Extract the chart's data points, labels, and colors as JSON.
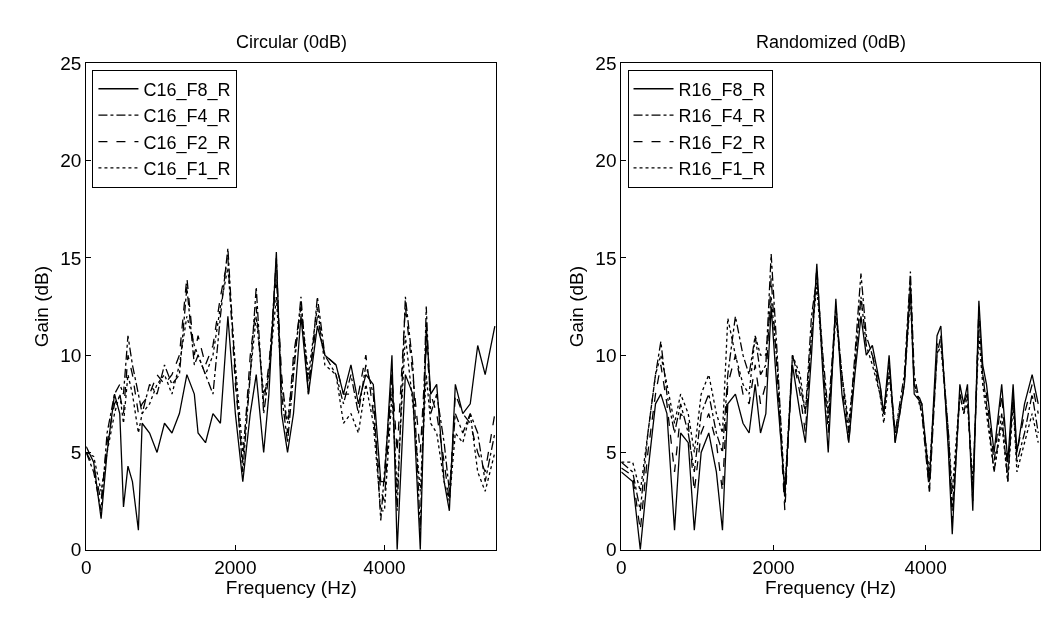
{
  "chart_data": [
    {
      "type": "line",
      "title": "Circular (0dB)",
      "xlabel": "Frequency (Hz)",
      "ylabel": "Gain (dB)",
      "xlim": [
        0,
        5500
      ],
      "xticks": [
        0,
        2000,
        4000
      ],
      "ylim": [
        0,
        25
      ],
      "yticks": [
        0,
        5,
        10,
        15,
        20,
        25
      ],
      "grid": false,
      "legend": "top left",
      "marker": "none",
      "x": [
        0,
        100,
        200,
        280,
        380,
        450,
        500,
        560,
        620,
        700,
        750,
        850,
        950,
        1050,
        1150,
        1250,
        1350,
        1450,
        1500,
        1600,
        1700,
        1800,
        1900,
        2000,
        2100,
        2200,
        2280,
        2380,
        2450,
        2550,
        2620,
        2700,
        2780,
        2880,
        2980,
        3100,
        3200,
        3350,
        3450,
        3550,
        3650,
        3750,
        3850,
        3950,
        4000,
        4100,
        4170,
        4280,
        4380,
        4480,
        4560,
        4620,
        4700,
        4800,
        4870,
        4950,
        5050,
        5150,
        5250,
        5350,
        5480
      ],
      "series": [
        {
          "name": "C16_F8_R",
          "color": "#000000",
          "line_style": "solid",
          "values": [
            5.3,
            4.5,
            1.6,
            5,
            8,
            7,
            2.2,
            4.3,
            3.5,
            1,
            6.5,
            6,
            5,
            6.5,
            6,
            7,
            9,
            8,
            6,
            5.5,
            7,
            6.5,
            12,
            7,
            3.5,
            7,
            9,
            5,
            8,
            15.3,
            7,
            5,
            7,
            12,
            8,
            11.5,
            10,
            9.5,
            8,
            9.5,
            7.5,
            9,
            8.5,
            3.5,
            3.5,
            10,
            0,
            9,
            8,
            0,
            11.5,
            8,
            8.5,
            3.5,
            2,
            8.5,
            7,
            7.5,
            10.5,
            9,
            11.5
          ]
        },
        {
          "name": "C16_F4_R",
          "color": "#000000",
          "line_style": "dashdot",
          "values": [
            5,
            4,
            2,
            6,
            8,
            8.5,
            8,
            11,
            9.5,
            8,
            7,
            8.5,
            8,
            9.5,
            8.5,
            9,
            13.5,
            9.5,
            10,
            9,
            8,
            12,
            15.5,
            9,
            4,
            9,
            13.5,
            7,
            9,
            15,
            8,
            5.5,
            9,
            13,
            8,
            13,
            10,
            9,
            7.5,
            9,
            7,
            9.5,
            8,
            1.5,
            4,
            9,
            2,
            13,
            9.5,
            1,
            12.5,
            7,
            8,
            5.5,
            3,
            7,
            6,
            7,
            6,
            3.5,
            6
          ]
        },
        {
          "name": "C16_F2_R",
          "color": "#000000",
          "line_style": "dashed",
          "values": [
            5,
            4.3,
            2.5,
            5.5,
            7.5,
            8,
            7,
            10,
            9,
            7,
            7.5,
            8,
            9,
            8.5,
            9,
            10,
            14,
            10,
            11,
            9.5,
            10.5,
            13,
            15,
            8.5,
            4.5,
            10,
            12.5,
            7.5,
            9.5,
            14,
            9,
            6,
            10,
            12.5,
            8.5,
            12,
            10,
            9.5,
            8,
            8,
            8,
            10,
            7,
            3,
            2.5,
            9,
            5,
            12.5,
            9,
            5,
            10.5,
            8,
            7,
            4.5,
            2.5,
            8,
            7,
            6.5,
            5,
            4,
            7
          ]
        },
        {
          "name": "C16_F1_R",
          "color": "#000000",
          "line_style": "dotted",
          "values": [
            5,
            4.8,
            3,
            5,
            7,
            8,
            6.5,
            9,
            8,
            6,
            7,
            7.5,
            8.5,
            9,
            8,
            9.5,
            12,
            10.5,
            10,
            9,
            10,
            12.5,
            14.5,
            9.5,
            5,
            9,
            12,
            8,
            9,
            13,
            8.5,
            6.5,
            9.5,
            12.5,
            9,
            12.5,
            9.5,
            9,
            6.5,
            7,
            6,
            8.5,
            6.5,
            2,
            2,
            8,
            3,
            11,
            7.5,
            3,
            9,
            6.5,
            6,
            3.5,
            2.5,
            6,
            5.5,
            7,
            4,
            3,
            5
          ]
        }
      ]
    },
    {
      "type": "line",
      "title": "Randomized (0dB)",
      "xlabel": "Frequency (Hz)",
      "ylabel": "Gain (dB)",
      "xlim": [
        0,
        5500
      ],
      "xticks": [
        0,
        2000,
        4000
      ],
      "ylim": [
        0,
        25
      ],
      "yticks": [
        0,
        5,
        10,
        15,
        20,
        25
      ],
      "grid": false,
      "legend": "top left",
      "marker": "none",
      "x": [
        0,
        150,
        250,
        350,
        450,
        520,
        600,
        700,
        780,
        880,
        960,
        1050,
        1150,
        1250,
        1330,
        1400,
        1500,
        1600,
        1680,
        1760,
        1830,
        1900,
        1970,
        2050,
        2150,
        2250,
        2350,
        2420,
        2500,
        2570,
        2650,
        2720,
        2820,
        2900,
        2990,
        3070,
        3150,
        3220,
        3300,
        3400,
        3450,
        3520,
        3600,
        3720,
        3800,
        3850,
        3950,
        4050,
        4150,
        4200,
        4300,
        4350,
        4450,
        4500,
        4550,
        4620,
        4700,
        4750,
        4800,
        4900,
        5000,
        5080,
        5150,
        5200,
        5300,
        5400,
        5480
      ],
      "series": [
        {
          "name": "R16_F8_R",
          "color": "#000000",
          "line_style": "solid",
          "values": [
            4,
            3.5,
            0,
            4,
            7.5,
            8,
            7,
            1,
            6,
            5.5,
            1,
            5,
            6,
            4,
            1,
            7.5,
            8,
            6.5,
            6,
            8.5,
            6,
            7,
            12.5,
            8,
            3,
            9.5,
            7,
            5.5,
            10,
            14.7,
            9,
            5,
            12.9,
            8,
            5.5,
            9,
            12,
            10,
            10.5,
            8.5,
            7,
            10,
            5.5,
            8.5,
            13.5,
            8,
            7.5,
            3.5,
            11,
            11.5,
            5,
            0.8,
            8.5,
            7.5,
            8.5,
            2,
            12.8,
            9.5,
            8.5,
            5,
            8.5,
            4.5,
            8.5,
            5,
            7.5,
            9,
            7.5
          ]
        },
        {
          "name": "R16_F4_R",
          "color": "#000000",
          "line_style": "dashdot",
          "values": [
            4.5,
            4,
            2,
            6,
            9,
            10.7,
            8,
            6,
            7.5,
            6,
            4,
            7,
            8,
            6,
            5,
            9,
            12,
            10,
            9,
            11,
            9,
            9.5,
            15.2,
            10,
            2.5,
            10,
            8.5,
            7,
            12,
            14,
            10,
            7,
            12.5,
            9,
            6,
            10,
            14.2,
            11,
            10,
            8,
            7,
            9.5,
            6,
            9,
            14.3,
            9,
            7,
            3,
            10,
            11,
            6,
            2,
            8,
            7,
            8,
            3,
            12,
            9,
            7.5,
            4,
            7,
            3.5,
            8,
            4.5,
            6,
            8,
            6
          ]
        },
        {
          "name": "R16_F2_R",
          "color": "#000000",
          "line_style": "dashed",
          "values": [
            4.2,
            3.8,
            1,
            5,
            8,
            9.5,
            7.5,
            4,
            7,
            6.5,
            3,
            6,
            7,
            5.5,
            3,
            8.5,
            10,
            8,
            7.5,
            9.5,
            7.5,
            8.5,
            14,
            9,
            2,
            10,
            8,
            6,
            11,
            14.5,
            9.5,
            6,
            12.5,
            8.5,
            5.5,
            9.5,
            13,
            10.5,
            10,
            8.5,
            7,
            9.5,
            5.5,
            8.5,
            13.8,
            8.5,
            7.5,
            3,
            10.5,
            11,
            5.5,
            1.5,
            8,
            7.5,
            8,
            2.5,
            12.5,
            9,
            8,
            4.5,
            8,
            4,
            8,
            5,
            7,
            8.5,
            7
          ]
        },
        {
          "name": "R16_F1_R",
          "color": "#000000",
          "line_style": "dotted",
          "values": [
            4.5,
            4.5,
            3,
            6,
            9,
            10,
            8.5,
            6.5,
            8,
            7,
            5,
            8,
            9,
            7,
            6,
            11.9,
            10,
            8.5,
            8,
            11,
            10,
            10,
            13,
            9.5,
            3,
            10,
            9,
            7,
            11,
            13.5,
            9.5,
            6.5,
            12,
            9,
            6.5,
            9.5,
            13,
            10.5,
            9.5,
            8,
            6.5,
            9,
            6,
            8.5,
            13,
            8.5,
            7,
            4,
            10,
            10.5,
            6,
            3,
            8,
            7,
            7.5,
            3.5,
            11,
            8.5,
            7,
            4,
            6.5,
            3.5,
            7.5,
            4,
            5.5,
            7,
            5.5
          ]
        }
      ]
    }
  ]
}
